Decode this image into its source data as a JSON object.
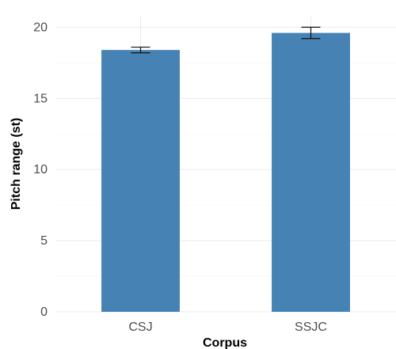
{
  "chart_data": {
    "type": "bar",
    "categories": [
      "CSJ",
      "SSJC"
    ],
    "values": [
      18.4,
      19.6
    ],
    "error_bars": [
      {
        "low": 18.2,
        "high": 18.6
      },
      {
        "low": 19.2,
        "high": 20.0
      }
    ],
    "xlabel": "Corpus",
    "ylabel": "Pitch range (st)",
    "ylim": [
      0,
      20.8
    ],
    "yticks": [
      0,
      5,
      10,
      15,
      20
    ],
    "grid": true,
    "bar_color": "#4682b4",
    "error_color": "#111111",
    "grid_color": "#ebebeb",
    "background": "#ffffff"
  }
}
